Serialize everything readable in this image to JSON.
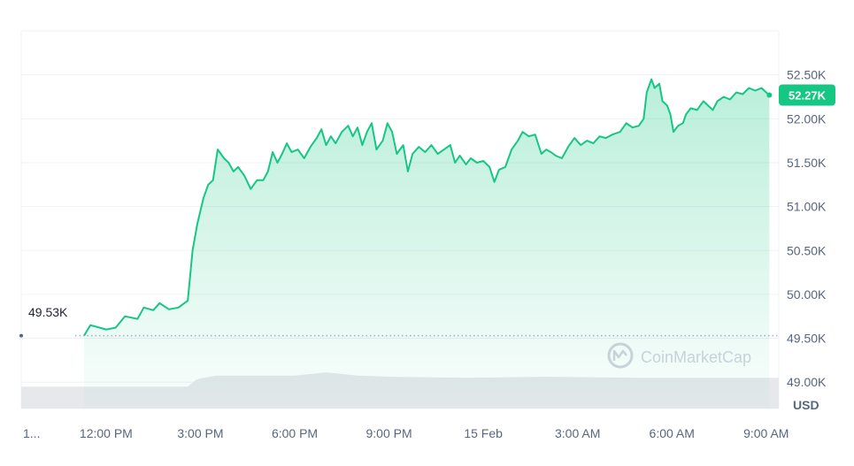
{
  "chart_data": {
    "type": "area",
    "currency_label": "USD",
    "current_price_badge": "52.27K",
    "baseline_label": "49.53K",
    "baseline_value": 49.53,
    "ylim": [
      48.7,
      53.0
    ],
    "y_ticks": [
      {
        "label": "52.50K",
        "value": 52.5
      },
      {
        "label": "52.00K",
        "value": 52.0
      },
      {
        "label": "51.50K",
        "value": 51.5
      },
      {
        "label": "51.00K",
        "value": 51.0
      },
      {
        "label": "50.50K",
        "value": 50.5
      },
      {
        "label": "50.00K",
        "value": 50.0
      },
      {
        "label": "49.50K",
        "value": 49.5
      },
      {
        "label": "49.00K",
        "value": 49.0
      }
    ],
    "x_ticks": [
      {
        "label": "1...",
        "hour": 9.3
      },
      {
        "label": "12:00 PM",
        "hour": 12
      },
      {
        "label": "3:00 PM",
        "hour": 15
      },
      {
        "label": "6:00 PM",
        "hour": 18
      },
      {
        "label": "9:00 PM",
        "hour": 21
      },
      {
        "label": "15 Feb",
        "hour": 24
      },
      {
        "label": "3:00 AM",
        "hour": 27
      },
      {
        "label": "6:00 AM",
        "hour": 30
      },
      {
        "label": "9:00 AM",
        "hour": 33
      }
    ],
    "series": [
      {
        "color": "#16c784",
        "points": [
          [
            11.3,
            49.53
          ],
          [
            11.5,
            49.65
          ],
          [
            11.8,
            49.62
          ],
          [
            12.0,
            49.6
          ],
          [
            12.3,
            49.62
          ],
          [
            12.6,
            49.75
          ],
          [
            13.0,
            49.72
          ],
          [
            13.2,
            49.85
          ],
          [
            13.5,
            49.82
          ],
          [
            13.7,
            49.9
          ],
          [
            14.0,
            49.83
          ],
          [
            14.3,
            49.85
          ],
          [
            14.6,
            49.93
          ],
          [
            14.75,
            50.5
          ],
          [
            14.9,
            50.8
          ],
          [
            15.1,
            51.1
          ],
          [
            15.25,
            51.25
          ],
          [
            15.4,
            51.3
          ],
          [
            15.55,
            51.65
          ],
          [
            15.75,
            51.55
          ],
          [
            15.9,
            51.5
          ],
          [
            16.05,
            51.4
          ],
          [
            16.2,
            51.45
          ],
          [
            16.4,
            51.35
          ],
          [
            16.6,
            51.2
          ],
          [
            16.8,
            51.3
          ],
          [
            17.0,
            51.3
          ],
          [
            17.15,
            51.4
          ],
          [
            17.3,
            51.62
          ],
          [
            17.45,
            51.5
          ],
          [
            17.6,
            51.6
          ],
          [
            17.75,
            51.72
          ],
          [
            17.9,
            51.62
          ],
          [
            18.1,
            51.65
          ],
          [
            18.3,
            51.55
          ],
          [
            18.5,
            51.68
          ],
          [
            18.7,
            51.78
          ],
          [
            18.85,
            51.88
          ],
          [
            19.0,
            51.7
          ],
          [
            19.15,
            51.8
          ],
          [
            19.3,
            51.72
          ],
          [
            19.5,
            51.85
          ],
          [
            19.7,
            51.92
          ],
          [
            19.85,
            51.8
          ],
          [
            20.0,
            51.9
          ],
          [
            20.15,
            51.7
          ],
          [
            20.3,
            51.85
          ],
          [
            20.45,
            51.95
          ],
          [
            20.6,
            51.65
          ],
          [
            20.8,
            51.75
          ],
          [
            20.95,
            51.95
          ],
          [
            21.1,
            51.85
          ],
          [
            21.25,
            51.6
          ],
          [
            21.45,
            51.7
          ],
          [
            21.6,
            51.4
          ],
          [
            21.75,
            51.6
          ],
          [
            21.95,
            51.68
          ],
          [
            22.15,
            51.62
          ],
          [
            22.35,
            51.7
          ],
          [
            22.55,
            51.6
          ],
          [
            22.75,
            51.65
          ],
          [
            22.95,
            51.7
          ],
          [
            23.1,
            51.5
          ],
          [
            23.25,
            51.58
          ],
          [
            23.45,
            51.48
          ],
          [
            23.6,
            51.55
          ],
          [
            23.8,
            51.5
          ],
          [
            24.0,
            51.52
          ],
          [
            24.2,
            51.45
          ],
          [
            24.35,
            51.28
          ],
          [
            24.5,
            51.42
          ],
          [
            24.7,
            51.45
          ],
          [
            24.9,
            51.65
          ],
          [
            25.1,
            51.75
          ],
          [
            25.25,
            51.85
          ],
          [
            25.45,
            51.8
          ],
          [
            25.65,
            51.82
          ],
          [
            25.85,
            51.6
          ],
          [
            26.0,
            51.65
          ],
          [
            26.15,
            51.62
          ],
          [
            26.3,
            51.58
          ],
          [
            26.5,
            51.55
          ],
          [
            26.7,
            51.68
          ],
          [
            26.9,
            51.78
          ],
          [
            27.1,
            51.7
          ],
          [
            27.3,
            51.75
          ],
          [
            27.5,
            51.72
          ],
          [
            27.7,
            51.8
          ],
          [
            27.9,
            51.78
          ],
          [
            28.1,
            51.82
          ],
          [
            28.35,
            51.85
          ],
          [
            28.55,
            51.95
          ],
          [
            28.75,
            51.9
          ],
          [
            28.95,
            51.92
          ],
          [
            29.1,
            52.0
          ],
          [
            29.2,
            52.3
          ],
          [
            29.35,
            52.45
          ],
          [
            29.45,
            52.35
          ],
          [
            29.6,
            52.4
          ],
          [
            29.7,
            52.2
          ],
          [
            29.85,
            52.15
          ],
          [
            29.95,
            52.05
          ],
          [
            30.05,
            51.85
          ],
          [
            30.2,
            51.92
          ],
          [
            30.35,
            51.95
          ],
          [
            30.45,
            52.05
          ],
          [
            30.6,
            52.12
          ],
          [
            30.8,
            52.1
          ],
          [
            31.0,
            52.2
          ],
          [
            31.15,
            52.15
          ],
          [
            31.3,
            52.1
          ],
          [
            31.45,
            52.2
          ],
          [
            31.65,
            52.25
          ],
          [
            31.85,
            52.22
          ],
          [
            32.05,
            52.3
          ],
          [
            32.25,
            52.28
          ],
          [
            32.45,
            52.35
          ],
          [
            32.65,
            52.32
          ],
          [
            32.85,
            52.35
          ],
          [
            33.0,
            52.3
          ],
          [
            33.1,
            52.27
          ]
        ]
      }
    ],
    "volume": [
      [
        9.3,
        0.4
      ],
      [
        11.3,
        0.4
      ],
      [
        13.5,
        0.4
      ],
      [
        14.6,
        0.4
      ],
      [
        14.85,
        0.52
      ],
      [
        15.0,
        0.55
      ],
      [
        15.5,
        0.6
      ],
      [
        18.0,
        0.6
      ],
      [
        19.0,
        0.66
      ],
      [
        20.0,
        0.6
      ],
      [
        21.0,
        0.58
      ],
      [
        23.5,
        0.56
      ],
      [
        26.0,
        0.58
      ],
      [
        29.0,
        0.56
      ],
      [
        33.4,
        0.56
      ]
    ],
    "watermark": "CoinMarketCap",
    "grid": true
  }
}
